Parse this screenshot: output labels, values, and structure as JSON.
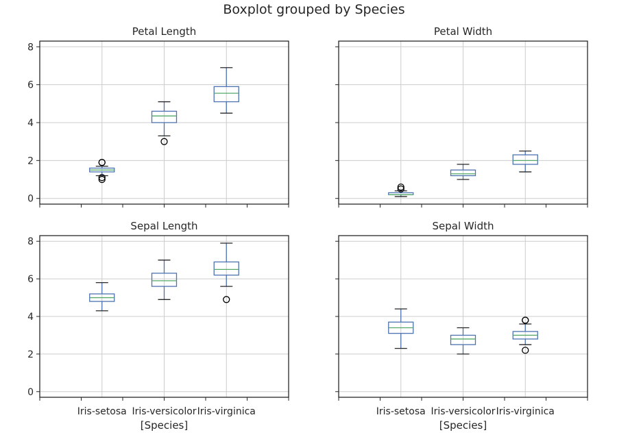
{
  "chart_data": {
    "type": "boxplot",
    "title": "Boxplot grouped by Species",
    "categories": [
      "Iris-setosa",
      "Iris-versicolor",
      "Iris-virginica"
    ],
    "xlabel": "[Species]",
    "ylim": [
      -0.3,
      8.3
    ],
    "yticks": [
      0,
      2,
      4,
      6,
      8
    ],
    "grid": true,
    "colors": {
      "box": "#4c72b0",
      "median": "#55a868",
      "whisker": "#4c72b0",
      "cap": "#262626",
      "grid": "#cccccc",
      "axis": "#262626",
      "flier": "#000000"
    },
    "panels": [
      {
        "title": "Petal Length",
        "boxes": [
          {
            "whislo": 1.2,
            "q1": 1.4,
            "med": 1.5,
            "q3": 1.6,
            "whishi": 1.7,
            "fliers": [
              1.0,
              1.1,
              1.9,
              1.9
            ]
          },
          {
            "whislo": 3.3,
            "q1": 4.0,
            "med": 4.35,
            "q3": 4.6,
            "whishi": 5.1,
            "fliers": [
              3.0
            ]
          },
          {
            "whislo": 4.5,
            "q1": 5.1,
            "med": 5.55,
            "q3": 5.9,
            "whishi": 6.9,
            "fliers": []
          }
        ]
      },
      {
        "title": "Petal Width",
        "boxes": [
          {
            "whislo": 0.1,
            "q1": 0.2,
            "med": 0.2,
            "q3": 0.3,
            "whishi": 0.4,
            "fliers": [
              0.5,
              0.6
            ]
          },
          {
            "whislo": 1.0,
            "q1": 1.2,
            "med": 1.3,
            "q3": 1.5,
            "whishi": 1.8,
            "fliers": []
          },
          {
            "whislo": 1.4,
            "q1": 1.8,
            "med": 2.0,
            "q3": 2.3,
            "whishi": 2.5,
            "fliers": []
          }
        ]
      },
      {
        "title": "Sepal Length",
        "boxes": [
          {
            "whislo": 4.3,
            "q1": 4.8,
            "med": 5.0,
            "q3": 5.2,
            "whishi": 5.8,
            "fliers": []
          },
          {
            "whislo": 4.9,
            "q1": 5.6,
            "med": 5.9,
            "q3": 6.3,
            "whishi": 7.0,
            "fliers": []
          },
          {
            "whislo": 5.6,
            "q1": 6.2,
            "med": 6.5,
            "q3": 6.9,
            "whishi": 7.9,
            "fliers": [
              4.9
            ]
          }
        ]
      },
      {
        "title": "Sepal Width",
        "boxes": [
          {
            "whislo": 2.3,
            "q1": 3.1,
            "med": 3.4,
            "q3": 3.7,
            "whishi": 4.4,
            "fliers": []
          },
          {
            "whislo": 2.0,
            "q1": 2.5,
            "med": 2.8,
            "q3": 3.0,
            "whishi": 3.4,
            "fliers": []
          },
          {
            "whislo": 2.5,
            "q1": 2.8,
            "med": 3.0,
            "q3": 3.2,
            "whishi": 3.6,
            "fliers": [
              2.2,
              3.8,
              3.8
            ]
          }
        ]
      }
    ]
  }
}
